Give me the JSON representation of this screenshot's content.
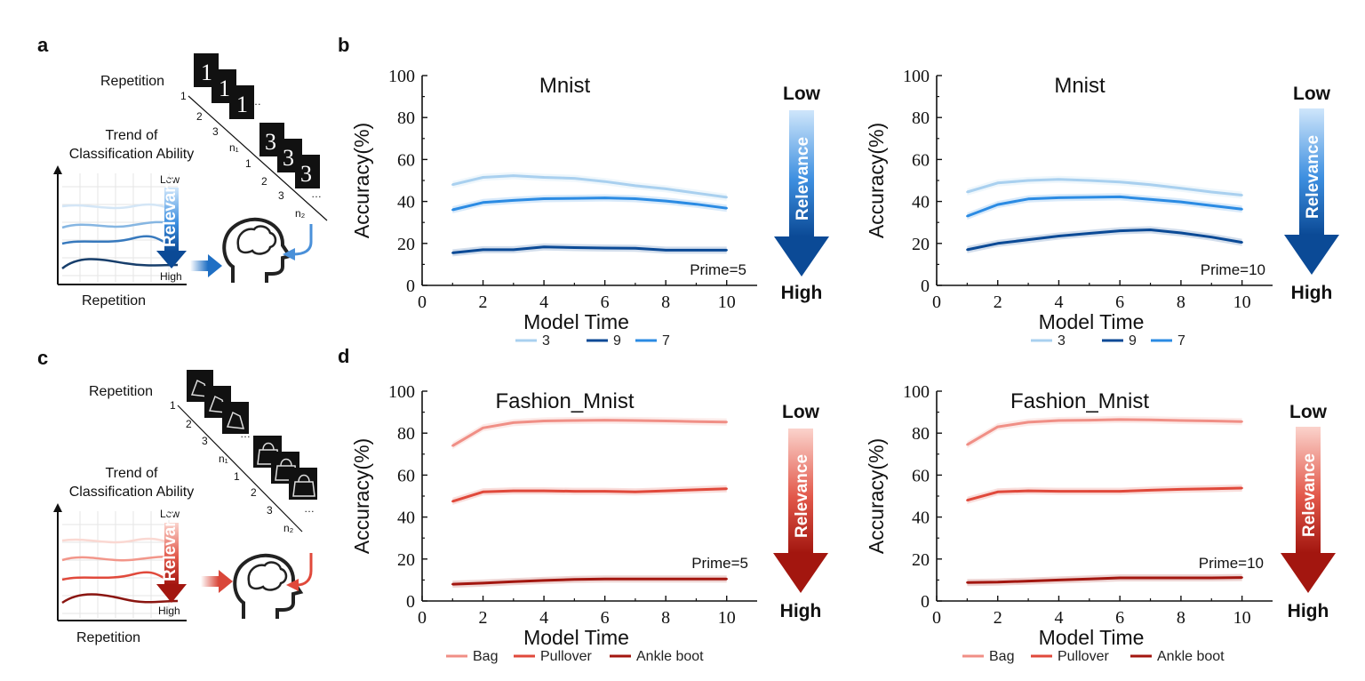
{
  "panel_labels": {
    "a": "a",
    "b": "b",
    "c": "c",
    "d": "d"
  },
  "schematic_a": {
    "repetition": "Repetition",
    "trend_line1": "Trend of",
    "trend_line2": "Classification Ability",
    "xlabel": "Repetition",
    "low": "Low",
    "high": "High",
    "relevance": "Relevance",
    "idx1": "1",
    "idx2": "2",
    "idx3": "3",
    "n1": "n₁",
    "jdx1": "1",
    "jdx2": "2",
    "jdx3": "3",
    "n2": "n₂",
    "dots": "…",
    "glyph1": "1",
    "glyph2": "3",
    "arrow_color": "#1f6fc4"
  },
  "schematic_c": {
    "repetition": "Repetition",
    "trend_line1": "Trend of",
    "trend_line2": "Classification Ability",
    "xlabel": "Repetition",
    "low": "Low",
    "high": "High",
    "relevance": "Relevance",
    "idx1": "1",
    "idx2": "2",
    "idx3": "3",
    "n1": "n₁",
    "jdx1": "1",
    "jdx2": "2",
    "jdx3": "3",
    "n2": "n₂",
    "dots": "…",
    "arrow_color": "#d9473a"
  },
  "chart_data": [
    {
      "type": "line",
      "title": "Mnist",
      "xlabel": "Model Time",
      "ylabel": "Accuracy(%)",
      "annotation": "Prime=5",
      "xlim": [
        0,
        11
      ],
      "ylim": [
        0,
        100
      ],
      "xticks": [
        "0",
        "2",
        "4",
        "6",
        "8",
        "10"
      ],
      "yticks": [
        "0",
        "20",
        "40",
        "60",
        "80",
        "100"
      ],
      "x": [
        1,
        2,
        3,
        4,
        5,
        6,
        7,
        8,
        9,
        10
      ],
      "series": [
        {
          "name": "3",
          "color": "#a9d0ef",
          "values": [
            48,
            51.5,
            52.3,
            51.5,
            51,
            49.5,
            47.5,
            46,
            44,
            42
          ]
        },
        {
          "name": "9",
          "color": "#0b4a96",
          "values": [
            15.5,
            17,
            17,
            18.3,
            18,
            17.8,
            17.7,
            16.8,
            16.8,
            16.8
          ]
        },
        {
          "name": "7",
          "color": "#2b8be3",
          "values": [
            36,
            39.5,
            40.5,
            41.3,
            41.5,
            41.7,
            41.3,
            40.2,
            38.7,
            36.8
          ]
        }
      ],
      "arrow": {
        "low": "Low",
        "high": "High",
        "text": "Relevance"
      }
    },
    {
      "type": "line",
      "title": "Mnist",
      "xlabel": "Model Time",
      "ylabel": "Accuracy(%)",
      "annotation": "Prime=10",
      "xlim": [
        0,
        11
      ],
      "ylim": [
        0,
        100
      ],
      "xticks": [
        "0",
        "2",
        "4",
        "6",
        "8",
        "10"
      ],
      "yticks": [
        "0",
        "20",
        "40",
        "60",
        "80",
        "100"
      ],
      "x": [
        1,
        2,
        3,
        4,
        5,
        6,
        7,
        8,
        9,
        10
      ],
      "series": [
        {
          "name": "3",
          "color": "#a9d0ef",
          "values": [
            44.5,
            48.8,
            50,
            50.5,
            50,
            49.3,
            48,
            46.3,
            44.5,
            43
          ]
        },
        {
          "name": "9",
          "color": "#0b4a96",
          "values": [
            17,
            20,
            21.8,
            23.5,
            24.8,
            26,
            26.5,
            25,
            23,
            20.5
          ]
        },
        {
          "name": "7",
          "color": "#2b8be3",
          "values": [
            33,
            38.5,
            41.2,
            41.8,
            42,
            42.2,
            41,
            39.8,
            38,
            36.3
          ]
        }
      ],
      "arrow": {
        "low": "Low",
        "high": "High",
        "text": "Relevance"
      }
    },
    {
      "type": "line",
      "title": "Fashion_Mnist",
      "xlabel": "Model Time",
      "ylabel": "Accuracy(%)",
      "annotation": "Prime=5",
      "xlim": [
        0,
        11
      ],
      "ylim": [
        0,
        100
      ],
      "xticks": [
        "0",
        "2",
        "4",
        "6",
        "8",
        "10"
      ],
      "yticks": [
        "0",
        "20",
        "40",
        "60",
        "80",
        "100"
      ],
      "x": [
        1,
        2,
        3,
        4,
        5,
        6,
        7,
        8,
        9,
        10
      ],
      "series": [
        {
          "name": "Bag",
          "color": "#f08f86",
          "values": [
            74,
            82.5,
            85,
            85.8,
            86,
            86.2,
            86,
            85.8,
            85.5,
            85.3
          ]
        },
        {
          "name": "Pullover",
          "color": "#e0493b",
          "values": [
            47.5,
            52,
            52.5,
            52.5,
            52.3,
            52.3,
            52,
            52.5,
            53,
            53.5
          ]
        },
        {
          "name": "Ankle boot",
          "color": "#a3160f",
          "values": [
            8,
            8.5,
            9.2,
            9.8,
            10.3,
            10.5,
            10.5,
            10.5,
            10.5,
            10.5
          ]
        }
      ],
      "arrow": {
        "low": "Low",
        "high": "High",
        "text": "Relevance"
      }
    },
    {
      "type": "line",
      "title": "Fashion_Mnist",
      "xlabel": "Model Time",
      "ylabel": "Accuracy(%)",
      "annotation": "Prime=10",
      "xlim": [
        0,
        11
      ],
      "ylim": [
        0,
        100
      ],
      "xticks": [
        "0",
        "2",
        "4",
        "6",
        "8",
        "10"
      ],
      "yticks": [
        "0",
        "20",
        "40",
        "60",
        "80",
        "100"
      ],
      "x": [
        1,
        2,
        3,
        4,
        5,
        6,
        7,
        8,
        9,
        10
      ],
      "series": [
        {
          "name": "Bag",
          "color": "#f08f86",
          "values": [
            74.5,
            83,
            85.2,
            86,
            86.2,
            86.5,
            86.3,
            86,
            85.8,
            85.5
          ]
        },
        {
          "name": "Pullover",
          "color": "#e0493b",
          "values": [
            48,
            52,
            52.5,
            52.3,
            52.3,
            52.3,
            52.8,
            53.2,
            53.5,
            53.8
          ]
        },
        {
          "name": "Ankle boot",
          "color": "#a3160f",
          "values": [
            8.8,
            9,
            9.5,
            10,
            10.5,
            11,
            11,
            11,
            11,
            11.2
          ]
        }
      ],
      "arrow": {
        "low": "Low",
        "high": "High",
        "text": "Relevance"
      }
    }
  ]
}
